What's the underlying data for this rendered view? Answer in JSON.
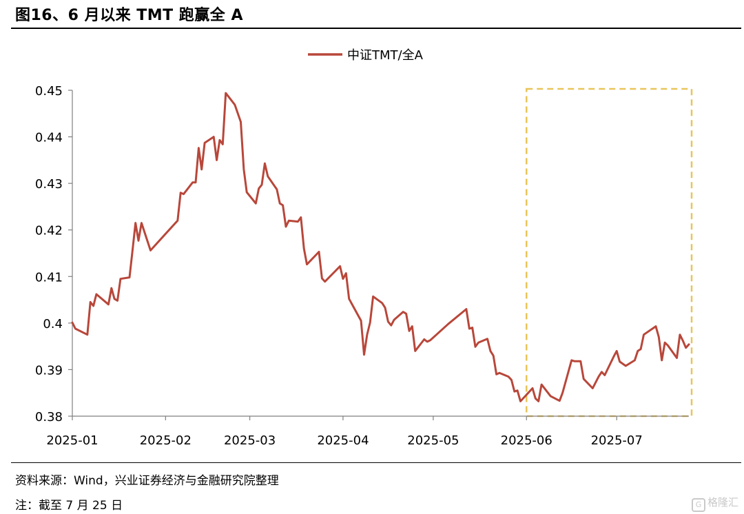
{
  "title": "图16、6 月以来 TMT 跑赢全 A",
  "source": "资料来源：Wind，兴业证券经济与金融研究院整理",
  "note": "注：截至 7 月 25 日",
  "watermark": "格隆汇",
  "chart_data": {
    "type": "line",
    "title": "",
    "xlabel": "",
    "ylabel": "",
    "legend_position": "top-center",
    "grid": false,
    "ylim": [
      0.38,
      0.45
    ],
    "yticks": [
      "0.38",
      "0.39",
      "0.4",
      "0.41",
      "0.42",
      "0.43",
      "0.44",
      "0.45"
    ],
    "xlim": [
      "2025-01-01",
      "2025-07-25"
    ],
    "xticks": [
      {
        "label": "2025-01",
        "date": "2025-01-01"
      },
      {
        "label": "2025-02",
        "date": "2025-02-01"
      },
      {
        "label": "2025-03",
        "date": "2025-03-01"
      },
      {
        "label": "2025-04",
        "date": "2025-04-01"
      },
      {
        "label": "2025-05",
        "date": "2025-05-01"
      },
      {
        "label": "2025-06",
        "date": "2025-06-01"
      },
      {
        "label": "2025-07",
        "date": "2025-07-01"
      }
    ],
    "highlight_range": {
      "from": "2025-06-01",
      "to": "2025-07-25",
      "color": "#e8c45a"
    },
    "series": [
      {
        "name": "中证TMT/全A",
        "color": "#b8473a",
        "points": [
          [
            "2025-01-01",
            0.4001
          ],
          [
            "2025-01-02",
            0.3988
          ],
          [
            "2025-01-06",
            0.3975
          ],
          [
            "2025-01-07",
            0.4045
          ],
          [
            "2025-01-08",
            0.4037
          ],
          [
            "2025-01-09",
            0.4062
          ],
          [
            "2025-01-13",
            0.404
          ],
          [
            "2025-01-14",
            0.4075
          ],
          [
            "2025-01-15",
            0.4052
          ],
          [
            "2025-01-16",
            0.4048
          ],
          [
            "2025-01-17",
            0.4095
          ],
          [
            "2025-01-20",
            0.4098
          ],
          [
            "2025-01-21",
            0.4155
          ],
          [
            "2025-01-22",
            0.4215
          ],
          [
            "2025-01-23",
            0.4177
          ],
          [
            "2025-01-24",
            0.4215
          ],
          [
            "2025-01-27",
            0.4156
          ],
          [
            "2025-02-05",
            0.422
          ],
          [
            "2025-02-06",
            0.428
          ],
          [
            "2025-02-07",
            0.4277
          ],
          [
            "2025-02-10",
            0.4302
          ],
          [
            "2025-02-11",
            0.4302
          ],
          [
            "2025-02-12",
            0.4376
          ],
          [
            "2025-02-13",
            0.433
          ],
          [
            "2025-02-14",
            0.4387
          ],
          [
            "2025-02-17",
            0.44
          ],
          [
            "2025-02-18",
            0.435
          ],
          [
            "2025-02-19",
            0.4393
          ],
          [
            "2025-02-20",
            0.4384
          ],
          [
            "2025-02-21",
            0.4494
          ],
          [
            "2025-02-24",
            0.4469
          ],
          [
            "2025-02-26",
            0.4432
          ],
          [
            "2025-02-27",
            0.433
          ],
          [
            "2025-02-28",
            0.4281
          ],
          [
            "2025-03-03",
            0.4257
          ],
          [
            "2025-03-04",
            0.4289
          ],
          [
            "2025-03-05",
            0.4297
          ],
          [
            "2025-03-06",
            0.4343
          ],
          [
            "2025-03-07",
            0.4315
          ],
          [
            "2025-03-10",
            0.4287
          ],
          [
            "2025-03-11",
            0.4257
          ],
          [
            "2025-03-12",
            0.4253
          ],
          [
            "2025-03-13",
            0.4207
          ],
          [
            "2025-03-14",
            0.422
          ],
          [
            "2025-03-17",
            0.4218
          ],
          [
            "2025-03-18",
            0.4227
          ],
          [
            "2025-03-19",
            0.416
          ],
          [
            "2025-03-20",
            0.4126
          ],
          [
            "2025-03-24",
            0.4153
          ],
          [
            "2025-03-25",
            0.4096
          ],
          [
            "2025-03-26",
            0.4089
          ],
          [
            "2025-03-31",
            0.4122
          ],
          [
            "2025-04-01",
            0.4095
          ],
          [
            "2025-04-02",
            0.4107
          ],
          [
            "2025-04-03",
            0.4052
          ],
          [
            "2025-04-07",
            0.4005
          ],
          [
            "2025-04-08",
            0.3932
          ],
          [
            "2025-04-09",
            0.3975
          ],
          [
            "2025-04-10",
            0.4001
          ],
          [
            "2025-04-11",
            0.4057
          ],
          [
            "2025-04-14",
            0.4043
          ],
          [
            "2025-04-15",
            0.4033
          ],
          [
            "2025-04-16",
            0.4003
          ],
          [
            "2025-04-17",
            0.3995
          ],
          [
            "2025-04-18",
            0.4007
          ],
          [
            "2025-04-21",
            0.4024
          ],
          [
            "2025-04-22",
            0.402
          ],
          [
            "2025-04-23",
            0.3983
          ],
          [
            "2025-04-24",
            0.3993
          ],
          [
            "2025-04-25",
            0.394
          ],
          [
            "2025-04-28",
            0.3965
          ],
          [
            "2025-04-29",
            0.396
          ],
          [
            "2025-04-30",
            0.3963
          ],
          [
            "2025-05-06",
            0.3998
          ],
          [
            "2025-05-12",
            0.403
          ],
          [
            "2025-05-13",
            0.3988
          ],
          [
            "2025-05-14",
            0.399
          ],
          [
            "2025-05-15",
            0.3949
          ],
          [
            "2025-05-16",
            0.3958
          ],
          [
            "2025-05-19",
            0.3966
          ],
          [
            "2025-05-20",
            0.394
          ],
          [
            "2025-05-21",
            0.393
          ],
          [
            "2025-05-22",
            0.389
          ],
          [
            "2025-05-23",
            0.3893
          ],
          [
            "2025-05-26",
            0.3885
          ],
          [
            "2025-05-27",
            0.3878
          ],
          [
            "2025-05-28",
            0.3853
          ],
          [
            "2025-05-29",
            0.3855
          ],
          [
            "2025-05-30",
            0.3832
          ],
          [
            "2025-06-03",
            0.386
          ],
          [
            "2025-06-04",
            0.3838
          ],
          [
            "2025-06-05",
            0.3832
          ],
          [
            "2025-06-06",
            0.3868
          ],
          [
            "2025-06-09",
            0.3843
          ],
          [
            "2025-06-12",
            0.3833
          ],
          [
            "2025-06-13",
            0.385
          ],
          [
            "2025-06-16",
            0.392
          ],
          [
            "2025-06-17",
            0.3918
          ],
          [
            "2025-06-18",
            0.3918
          ],
          [
            "2025-06-19",
            0.3918
          ],
          [
            "2025-06-20",
            0.388
          ],
          [
            "2025-06-23",
            0.386
          ],
          [
            "2025-06-25",
            0.3885
          ],
          [
            "2025-06-26",
            0.3895
          ],
          [
            "2025-06-27",
            0.3888
          ],
          [
            "2025-06-30",
            0.3928
          ],
          [
            "2025-07-01",
            0.394
          ],
          [
            "2025-07-02",
            0.3917
          ],
          [
            "2025-07-04",
            0.3908
          ],
          [
            "2025-07-07",
            0.392
          ],
          [
            "2025-07-08",
            0.394
          ],
          [
            "2025-07-09",
            0.3944
          ],
          [
            "2025-07-10",
            0.3975
          ],
          [
            "2025-07-14",
            0.3993
          ],
          [
            "2025-07-15",
            0.397
          ],
          [
            "2025-07-16",
            0.392
          ],
          [
            "2025-07-17",
            0.3958
          ],
          [
            "2025-07-18",
            0.3952
          ],
          [
            "2025-07-21",
            0.3925
          ],
          [
            "2025-07-22",
            0.3975
          ],
          [
            "2025-07-23",
            0.3962
          ],
          [
            "2025-07-24",
            0.3947
          ],
          [
            "2025-07-25",
            0.3954
          ]
        ]
      }
    ]
  }
}
